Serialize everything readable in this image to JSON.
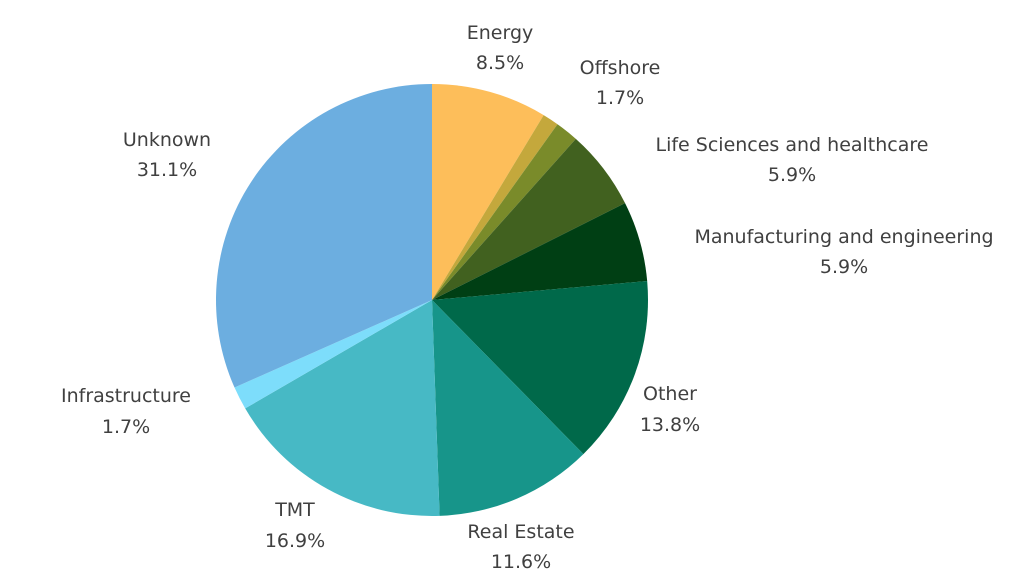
{
  "chart_data": {
    "type": "pie",
    "start_angle_deg": 0,
    "direction": "clockwise",
    "slices": [
      {
        "label": "Energy",
        "display_value": "8.5%",
        "value": 8.5,
        "color": "#FDBE5A"
      },
      {
        "label": "",
        "display_value": "",
        "value": 1.2,
        "color": "#C4A83C"
      },
      {
        "label": "Offshore",
        "display_value": "1.7%",
        "value": 1.7,
        "color": "#7A8B2A"
      },
      {
        "label": "Life Sciences and healthcare",
        "display_value": "5.9%",
        "value": 5.9,
        "color": "#41611F"
      },
      {
        "label": "Manufacturing and engineering",
        "display_value": "5.9%",
        "value": 5.9,
        "color": "#003F14"
      },
      {
        "label": "Other",
        "display_value": "13.8%",
        "value": 13.8,
        "color": "#00694A"
      },
      {
        "label": "Real Estate",
        "display_value": "11.6%",
        "value": 11.6,
        "color": "#17958A"
      },
      {
        "label": "TMT",
        "display_value": "16.9%",
        "value": 16.9,
        "color": "#47B9C5"
      },
      {
        "label": "Infrastructure",
        "display_value": "1.7%",
        "value": 1.7,
        "color": "#7DDDFB"
      },
      {
        "label": "Unknown",
        "display_value": "31.1%",
        "value": 31.1,
        "color": "#6CAEE0"
      }
    ]
  }
}
